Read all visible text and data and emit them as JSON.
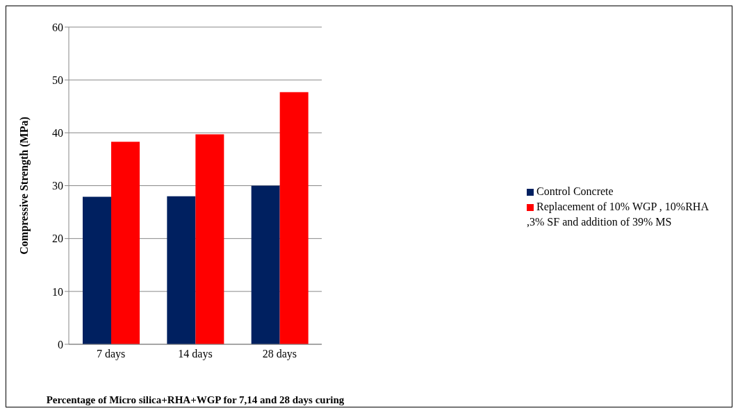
{
  "chart_data": {
    "type": "bar",
    "xlabel": "Percentage of Micro silica+RHA+WGP  for 7,14 and 28 days curing",
    "ylabel": "Compressive Strength (MPa)",
    "categories": [
      "7 days",
      "14 days",
      "28 days"
    ],
    "series": [
      {
        "name": "Control Concrete",
        "color": "#002060",
        "values": [
          27.9,
          28.0,
          30.0
        ]
      },
      {
        "name": "Replacement of 10% WGP , 10%RHA ,3% SF and addition of 39% MS",
        "color": "#ff0000",
        "values": [
          38.3,
          39.7,
          47.7
        ]
      }
    ],
    "ylim": [
      0,
      60
    ],
    "yticks": [
      0,
      10,
      20,
      30,
      40,
      50,
      60
    ],
    "grid": "y",
    "legend": "right"
  }
}
